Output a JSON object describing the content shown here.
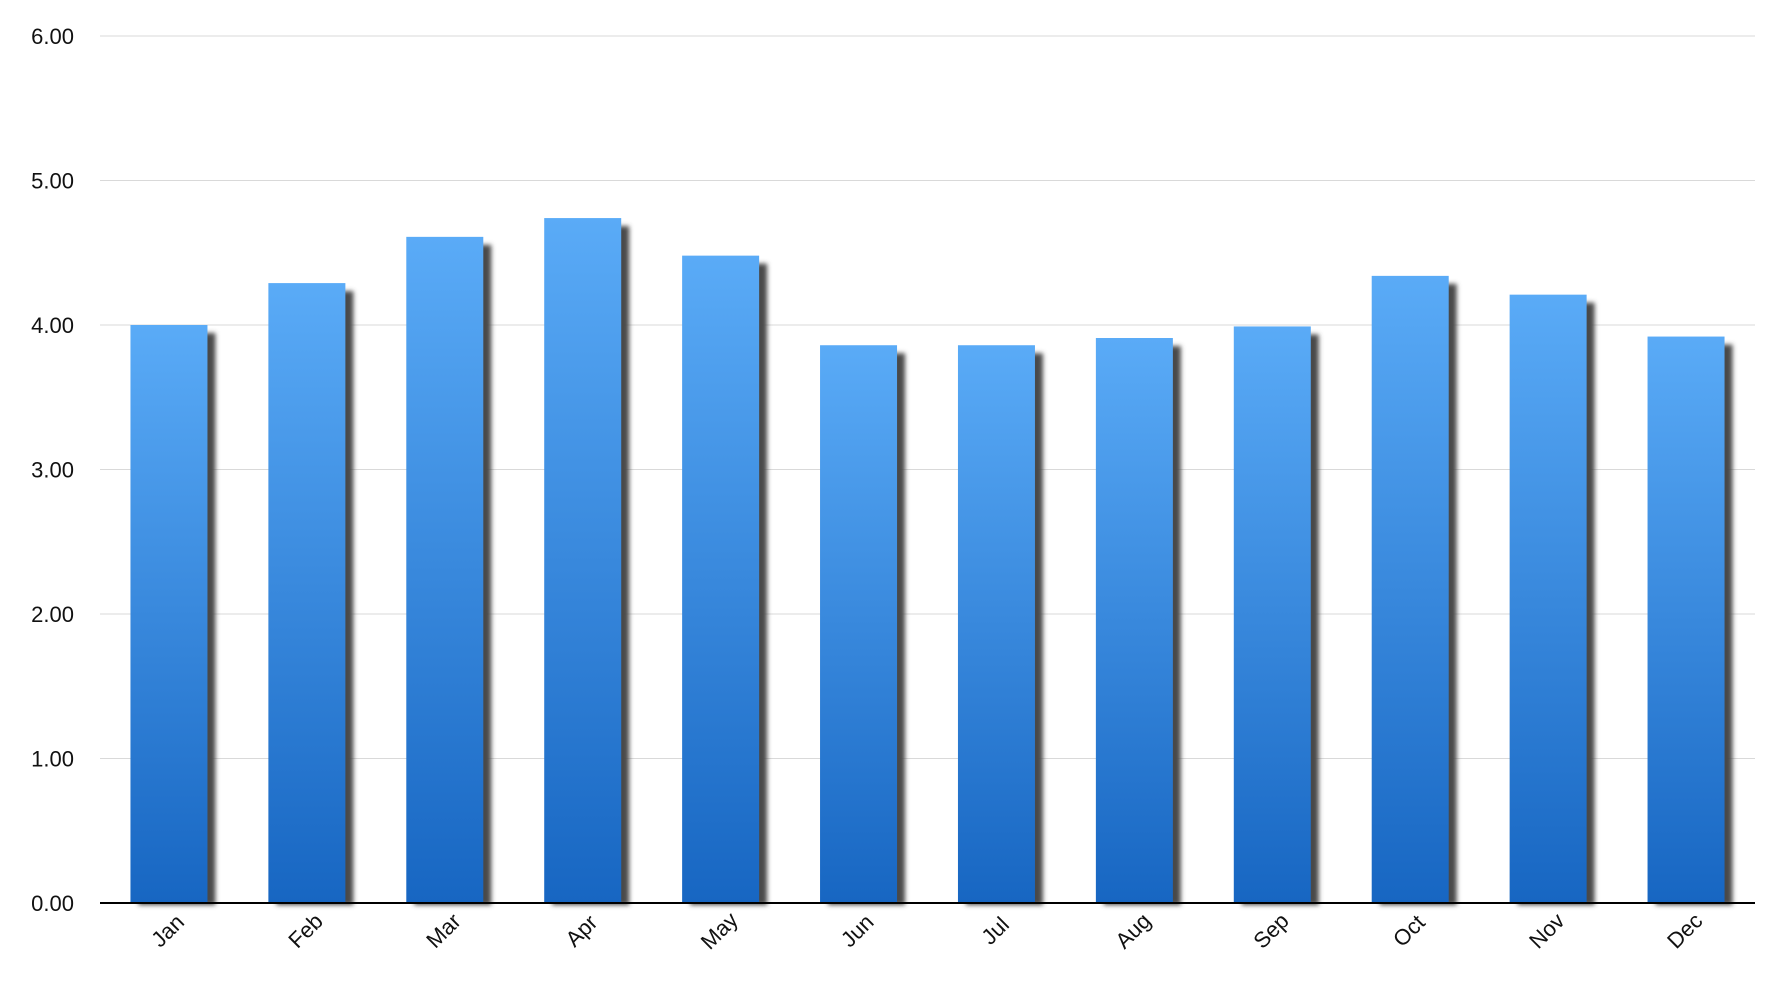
{
  "chart_data": {
    "type": "bar",
    "title": "",
    "xlabel": "",
    "ylabel": "",
    "categories": [
      "Jan",
      "Feb",
      "Mar",
      "Apr",
      "May",
      "Jun",
      "Jul",
      "Aug",
      "Sep",
      "Oct",
      "Nov",
      "Dec"
    ],
    "values": [
      4.0,
      4.29,
      4.61,
      4.74,
      4.48,
      3.86,
      3.86,
      3.91,
      3.99,
      4.34,
      4.21,
      3.92
    ],
    "ylim": [
      0,
      6
    ],
    "yticks": [
      "0.00",
      "1.00",
      "2.00",
      "3.00",
      "4.00",
      "5.00",
      "6.00"
    ],
    "grid": true,
    "legend": "none",
    "colors": {
      "bar_top": "#5aabf7",
      "bar_bottom": "#1766c2",
      "shadow": "#4a4a4a",
      "grid": "#d9d9d9",
      "axis": "#000000"
    }
  }
}
